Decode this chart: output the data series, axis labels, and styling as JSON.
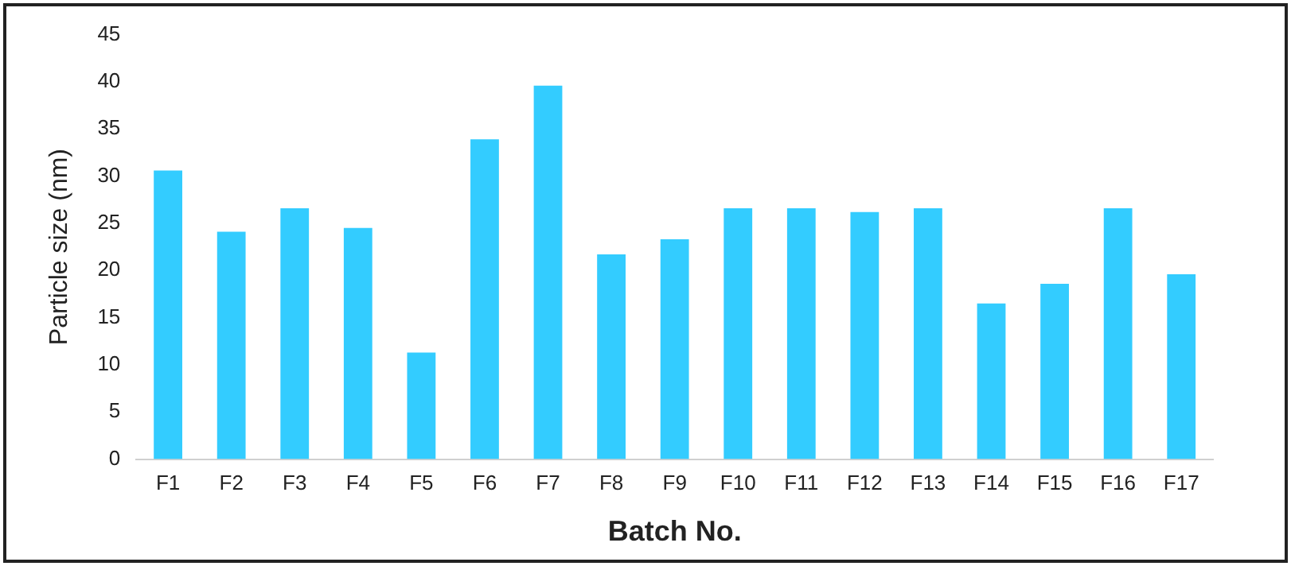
{
  "chart_data": {
    "type": "bar",
    "xlabel": "Batch No.",
    "ylabel": "Particle size (nm)",
    "categories": [
      "F1",
      "F2",
      "F3",
      "F4",
      "F5",
      "F6",
      "F7",
      "F8",
      "F9",
      "F10",
      "F11",
      "F12",
      "F13",
      "F14",
      "F15",
      "F16",
      "F17"
    ],
    "values": [
      30.6,
      24.1,
      26.6,
      24.5,
      11.3,
      33.9,
      39.6,
      21.7,
      23.3,
      26.6,
      26.6,
      26.2,
      26.6,
      16.5,
      18.6,
      26.6,
      19.6
    ],
    "color": "#33ccff",
    "ylim": [
      0,
      45
    ],
    "yticks": [
      0,
      5,
      10,
      15,
      20,
      25,
      30,
      35,
      40,
      45
    ],
    "grid": false,
    "legend": false
  }
}
